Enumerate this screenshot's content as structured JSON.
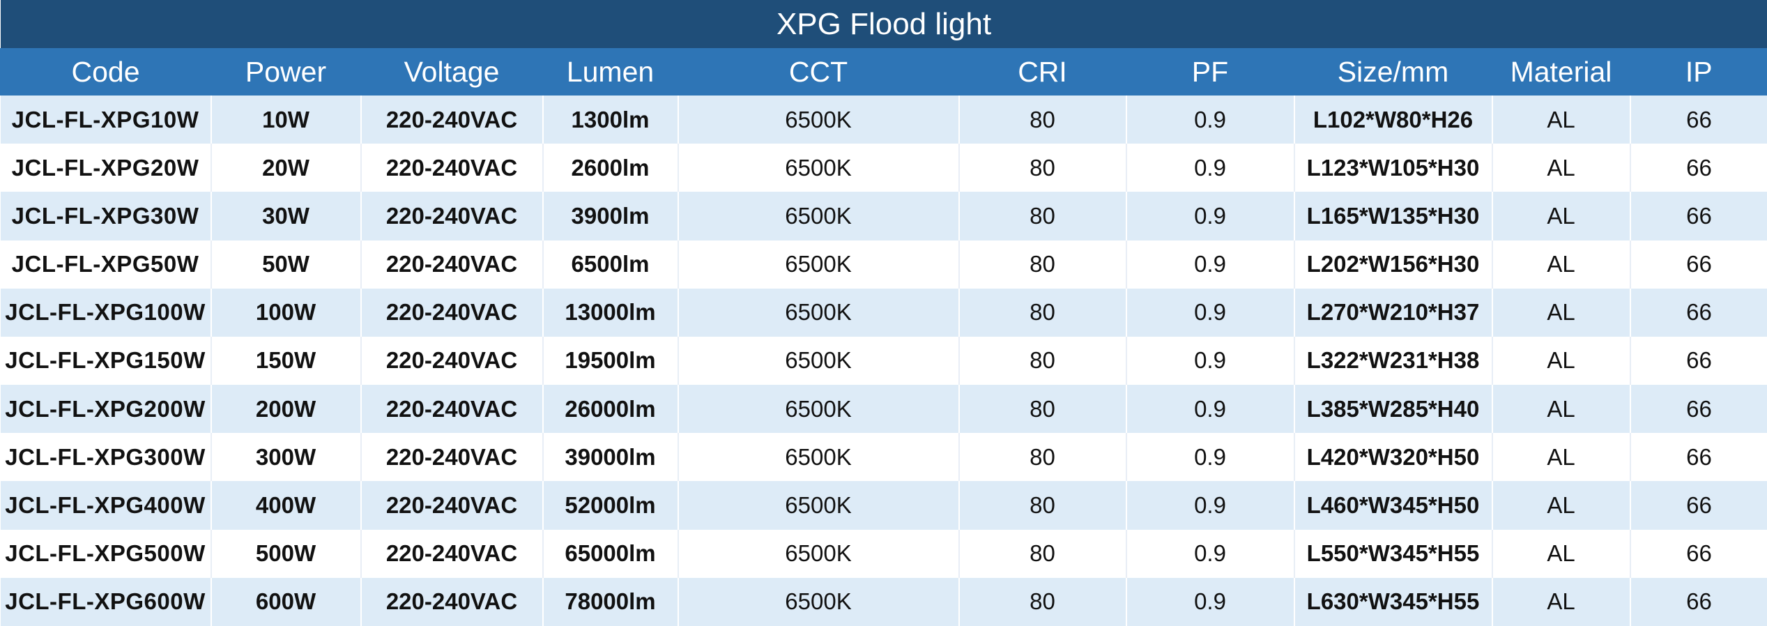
{
  "title": "XPG Flood light",
  "columns": [
    "Code",
    "Power",
    "Voltage",
    "Lumen",
    "CCT",
    "CRI",
    "PF",
    "Size/mm",
    "Material",
    "IP"
  ],
  "rows": [
    [
      "JCL-FL-XPG10W",
      "10W",
      "220-240VAC",
      "1300lm",
      "6500K",
      "80",
      "0.9",
      "L102*W80*H26",
      "AL",
      "66"
    ],
    [
      "JCL-FL-XPG20W",
      "20W",
      "220-240VAC",
      "2600lm",
      "6500K",
      "80",
      "0.9",
      "L123*W105*H30",
      "AL",
      "66"
    ],
    [
      "JCL-FL-XPG30W",
      "30W",
      "220-240VAC",
      "3900lm",
      "6500K",
      "80",
      "0.9",
      "L165*W135*H30",
      "AL",
      "66"
    ],
    [
      "JCL-FL-XPG50W",
      "50W",
      "220-240VAC",
      "6500lm",
      "6500K",
      "80",
      "0.9",
      "L202*W156*H30",
      "AL",
      "66"
    ],
    [
      "JCL-FL-XPG100W",
      "100W",
      "220-240VAC",
      "13000lm",
      "6500K",
      "80",
      "0.9",
      "L270*W210*H37",
      "AL",
      "66"
    ],
    [
      "JCL-FL-XPG150W",
      "150W",
      "220-240VAC",
      "19500lm",
      "6500K",
      "80",
      "0.9",
      "L322*W231*H38",
      "AL",
      "66"
    ],
    [
      "JCL-FL-XPG200W",
      "200W",
      "220-240VAC",
      "26000lm",
      "6500K",
      "80",
      "0.9",
      "L385*W285*H40",
      "AL",
      "66"
    ],
    [
      "JCL-FL-XPG300W",
      "300W",
      "220-240VAC",
      "39000lm",
      "6500K",
      "80",
      "0.9",
      "L420*W320*H50",
      "AL",
      "66"
    ],
    [
      "JCL-FL-XPG400W",
      "400W",
      "220-240VAC",
      "52000lm",
      "6500K",
      "80",
      "0.9",
      "L460*W345*H50",
      "AL",
      "66"
    ],
    [
      "JCL-FL-XPG500W",
      "500W",
      "220-240VAC",
      "65000lm",
      "6500K",
      "80",
      "0.9",
      "L550*W345*H55",
      "AL",
      "66"
    ],
    [
      "JCL-FL-XPG600W",
      "600W",
      "220-240VAC",
      "78000lm",
      "6500K",
      "80",
      "0.9",
      "L630*W345*H55",
      "AL",
      "66"
    ]
  ],
  "colors": {
    "title_bg": "#1f4e79",
    "header_bg": "#2e75b6",
    "stripe": "#ddebf7",
    "text_light": "#ffffff"
  }
}
